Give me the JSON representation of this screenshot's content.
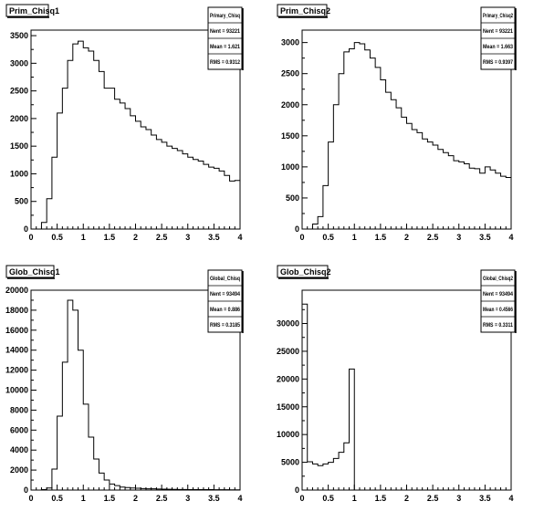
{
  "chart_data": [
    {
      "type": "bar",
      "title": "Prim_Chisq1",
      "xlim": [
        0,
        4
      ],
      "ylim": [
        0,
        3600
      ],
      "xticks": [
        "0",
        "0.5",
        "1",
        "1.5",
        "2",
        "2.5",
        "3",
        "3.5",
        "4"
      ],
      "yticks": [
        "0",
        "500",
        "1000",
        "1500",
        "2000",
        "2500",
        "3000",
        "3500"
      ],
      "bin_edges": [
        0,
        0.1,
        0.2,
        0.3,
        0.4,
        0.5,
        0.6,
        0.7,
        0.8,
        0.9,
        1.0,
        1.1,
        1.2,
        1.3,
        1.4,
        1.5,
        1.6,
        1.7,
        1.8,
        1.9,
        2.0,
        2.1,
        2.2,
        2.3,
        2.4,
        2.5,
        2.6,
        2.7,
        2.8,
        2.9,
        3.0,
        3.1,
        3.2,
        3.3,
        3.4,
        3.5,
        3.6,
        3.7,
        3.8,
        3.9,
        4.0
      ],
      "values": [
        0,
        0,
        120,
        550,
        1300,
        2100,
        2550,
        3050,
        3350,
        3400,
        3280,
        3220,
        3050,
        2850,
        2550,
        2550,
        2350,
        2280,
        2180,
        2050,
        1950,
        1850,
        1800,
        1700,
        1620,
        1570,
        1500,
        1460,
        1420,
        1360,
        1300,
        1260,
        1230,
        1170,
        1120,
        1100,
        1050,
        970,
        870,
        880
      ],
      "stats": {
        "name": "Primary_Chisq",
        "entries_label": "Nent = 93221",
        "mean_label": "Mean = 1.621",
        "rms_label": "RMS = 0.9312"
      }
    },
    {
      "type": "bar",
      "title": "Prim_Chisq2",
      "xlim": [
        0,
        4
      ],
      "ylim": [
        0,
        3200
      ],
      "xticks": [
        "0",
        "0.5",
        "1",
        "1.5",
        "2",
        "2.5",
        "3",
        "3.5",
        "4"
      ],
      "yticks": [
        "0",
        "500",
        "1000",
        "1500",
        "2000",
        "2500",
        "3000"
      ],
      "bin_edges": [
        0,
        0.1,
        0.2,
        0.3,
        0.4,
        0.5,
        0.6,
        0.7,
        0.8,
        0.9,
        1.0,
        1.1,
        1.2,
        1.3,
        1.4,
        1.5,
        1.6,
        1.7,
        1.8,
        1.9,
        2.0,
        2.1,
        2.2,
        2.3,
        2.4,
        2.5,
        2.6,
        2.7,
        2.8,
        2.9,
        3.0,
        3.1,
        3.2,
        3.3,
        3.4,
        3.5,
        3.6,
        3.7,
        3.8,
        3.9,
        4.0
      ],
      "values": [
        0,
        0,
        80,
        200,
        700,
        1400,
        2000,
        2500,
        2850,
        2900,
        3000,
        2980,
        2880,
        2750,
        2600,
        2400,
        2200,
        2080,
        1950,
        1800,
        1700,
        1600,
        1550,
        1450,
        1400,
        1350,
        1280,
        1230,
        1180,
        1100,
        1080,
        1050,
        980,
        970,
        900,
        1000,
        950,
        900,
        850,
        830
      ],
      "stats": {
        "name": "Primary_Chisq2",
        "entries_label": "Nent = 93221",
        "mean_label": "Mean = 1.663",
        "rms_label": "RMS = 0.9397"
      }
    },
    {
      "type": "bar",
      "title": "Glob_Chisq1",
      "xlim": [
        0,
        4
      ],
      "ylim": [
        0,
        20000
      ],
      "xticks": [
        "0",
        "0.5",
        "1",
        "1.5",
        "2",
        "2.5",
        "3",
        "3.5",
        "4"
      ],
      "yticks": [
        "0",
        "2000",
        "4000",
        "6000",
        "8000",
        "10000",
        "12000",
        "14000",
        "16000",
        "18000",
        "20000"
      ],
      "bin_edges": [
        0,
        0.1,
        0.2,
        0.3,
        0.4,
        0.5,
        0.6,
        0.7,
        0.8,
        0.9,
        1.0,
        1.1,
        1.2,
        1.3,
        1.4,
        1.5,
        1.6,
        1.7,
        1.8,
        1.9,
        2.0,
        2.1,
        2.2,
        2.3,
        2.4,
        2.5,
        2.6,
        2.7,
        2.8,
        2.9,
        3.0,
        3.1,
        3.2,
        3.3,
        3.4,
        3.5,
        3.6,
        3.7,
        3.8,
        3.9,
        4.0
      ],
      "values": [
        0,
        0,
        50,
        200,
        2100,
        7400,
        12800,
        19000,
        18000,
        14000,
        8600,
        5300,
        3100,
        1700,
        1000,
        600,
        450,
        300,
        250,
        200,
        180,
        150,
        130,
        120,
        100,
        90,
        80,
        70,
        60,
        60,
        50,
        50,
        40,
        40,
        40,
        30,
        30,
        30,
        20,
        20
      ],
      "stats": {
        "name": "Global_Chisq",
        "entries_label": "Nent = 93494",
        "mean_label": "Mean = 0.886",
        "rms_label": "RMS = 0.3185"
      }
    },
    {
      "type": "bar",
      "title": "Glob_Chisq2",
      "xlim": [
        0,
        4
      ],
      "ylim": [
        0,
        36000
      ],
      "xticks": [
        "0",
        "0.5",
        "1",
        "1.5",
        "2",
        "2.5",
        "3",
        "3.5",
        "4"
      ],
      "yticks": [
        "0",
        "5000",
        "10000",
        "15000",
        "20000",
        "25000",
        "30000"
      ],
      "bin_edges": [
        0,
        0.1,
        0.2,
        0.3,
        0.4,
        0.5,
        0.6,
        0.7,
        0.8,
        0.9,
        1.0,
        1.1,
        1.2,
        1.3,
        1.4,
        1.5,
        1.6,
        1.7,
        1.8,
        1.9,
        2.0,
        2.1,
        2.2,
        2.3,
        2.4,
        2.5,
        2.6,
        2.7,
        2.8,
        2.9,
        3.0,
        3.1,
        3.2,
        3.3,
        3.4,
        3.5,
        3.6,
        3.7,
        3.8,
        3.9,
        4.0
      ],
      "values": [
        33500,
        5100,
        4700,
        4400,
        4700,
        5000,
        5700,
        6800,
        8500,
        21800,
        0,
        0,
        0,
        0,
        0,
        0,
        0,
        0,
        0,
        0,
        0,
        0,
        0,
        0,
        0,
        0,
        0,
        0,
        0,
        0,
        0,
        0,
        0,
        0,
        0,
        0,
        0,
        0,
        0,
        0
      ],
      "stats": {
        "name": "Global_Chisq2",
        "entries_label": "Nent = 93494",
        "mean_label": "Mean = 0.4566",
        "rms_label": "RMS = 0.3311"
      }
    }
  ]
}
